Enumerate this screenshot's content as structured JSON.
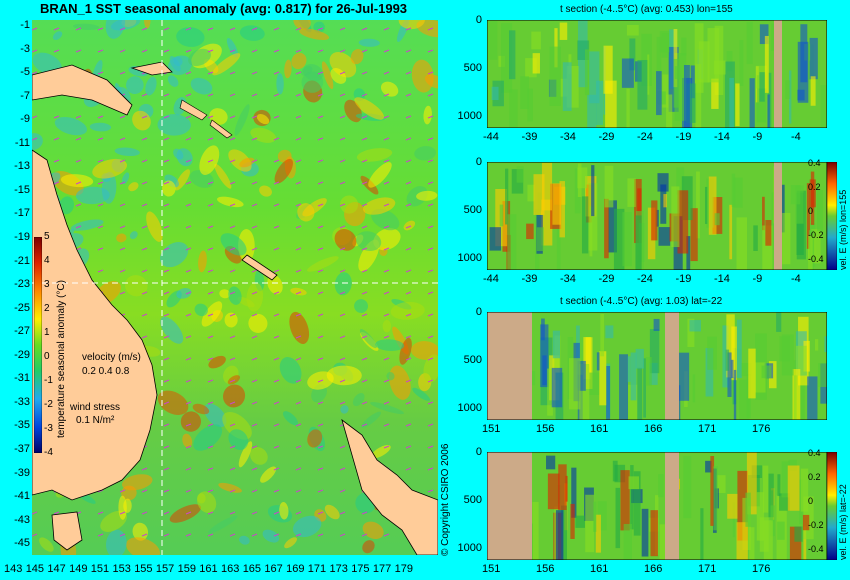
{
  "map": {
    "title": "BRAN_1 SST seasonal anomaly (avg: 0.817) for 26-Jul-1993",
    "yticks": [
      -1,
      -3,
      -5,
      -7,
      -9,
      -11,
      -13,
      -15,
      -17,
      -19,
      -21,
      -23,
      -25,
      -27,
      -29,
      -31,
      -33,
      -35,
      -37,
      -39,
      -41,
      -43,
      -45
    ],
    "xticks": [
      "143",
      "145",
      "147",
      "149",
      "151",
      "153",
      "155",
      "157",
      "159",
      "161",
      "163",
      "165",
      "167",
      "169",
      "171",
      "173",
      "175",
      "177",
      "179"
    ],
    "colorbar": {
      "label": "temperature seasonal anomaly (°C)",
      "ticks": [
        "5",
        "4",
        "3",
        "2",
        "1",
        "0",
        "-1",
        "-2",
        "-3",
        "-4"
      ]
    },
    "velocity_legend": {
      "title": "velocity (m/s)",
      "values": "0.2 0.4 0.8"
    },
    "wind_legend": {
      "title": "wind stress",
      "value": "0.1 N/m²"
    },
    "copyright": "© Copyright CSIRO 2006"
  },
  "panels": [
    {
      "subtitle": "t section (-4..5°C) (avg: 0.453) lon=155",
      "xticks": [
        "-44",
        "-39",
        "-34",
        "-29",
        "-24",
        "-19",
        "-14",
        "-9",
        "-4"
      ],
      "yticks": [
        "0",
        "500",
        "1000"
      ]
    },
    {
      "subtitle": "",
      "xticks": [
        "-44",
        "-39",
        "-34",
        "-29",
        "-24",
        "-19",
        "-14",
        "-9",
        "-4"
      ],
      "yticks": [
        "0",
        "500",
        "1000"
      ],
      "cbar_label": "vel. E (m/s) lon=155",
      "cbar_ticks": [
        "0.4",
        "0.2",
        "0",
        "-0.2",
        "-0.4"
      ]
    },
    {
      "subtitle": "t section (-4..5°C) (avg: 1.03) lat=-22",
      "xticks": [
        "151",
        "156",
        "161",
        "166",
        "171",
        "176"
      ],
      "yticks": [
        "0",
        "500",
        "1000"
      ]
    },
    {
      "subtitle": "",
      "xticks": [
        "151",
        "156",
        "161",
        "166",
        "171",
        "176"
      ],
      "yticks": [
        "0",
        "500",
        "1000"
      ],
      "cbar_label": "vel. E (m/s) lat=-22",
      "cbar_ticks": [
        "0.4",
        "0.2",
        "0",
        "-0.2",
        "-0.4"
      ]
    }
  ],
  "chart_data": [
    {
      "type": "heatmap",
      "title": "BRAN_1 SST seasonal anomaly (avg: 0.817) for 26-Jul-1993",
      "xlabel": "",
      "ylabel": "",
      "xlim": [
        143,
        180
      ],
      "ylim": [
        -45,
        0
      ],
      "colorbar_range": [
        -4,
        5
      ],
      "colorbar_label": "temperature seasonal anomaly (°C)"
    },
    {
      "type": "heatmap",
      "title": "t section (-4..5°C) (avg: 0.453) lon=155",
      "xlim": [
        -45,
        0
      ],
      "ylim": [
        1050,
        0
      ]
    },
    {
      "type": "heatmap",
      "title": "",
      "xlim": [
        -45,
        0
      ],
      "ylim": [
        1050,
        0
      ],
      "colorbar_range": [
        -0.4,
        0.4
      ],
      "colorbar_label": "vel. E (m/s) lon=155"
    },
    {
      "type": "heatmap",
      "title": "t section (-4..5°C) (avg: 1.03) lat=-22",
      "xlim": [
        150,
        180
      ],
      "ylim": [
        1050,
        0
      ]
    },
    {
      "type": "heatmap",
      "title": "",
      "xlim": [
        150,
        180
      ],
      "ylim": [
        1050,
        0
      ],
      "colorbar_range": [
        -0.4,
        0.4
      ],
      "colorbar_label": "vel. E (m/s) lat=-22"
    }
  ]
}
